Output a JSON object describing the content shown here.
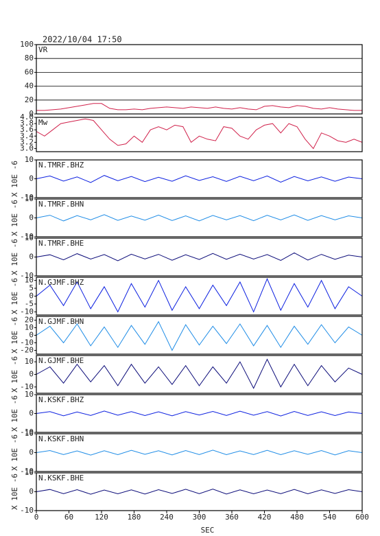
{
  "chart_data": [
    {
      "type": "line",
      "title": "2022/10/04  17:50",
      "label": "VR",
      "color": "#d0204a",
      "grid": true,
      "xlim": [
        0,
        600
      ],
      "ylim": [
        0,
        100
      ],
      "yticks": [
        0,
        20,
        40,
        60,
        80,
        100
      ],
      "x": [
        0,
        15,
        30,
        45,
        60,
        75,
        90,
        105,
        120,
        135,
        150,
        165,
        180,
        195,
        210,
        225,
        240,
        255,
        270,
        285,
        300,
        315,
        330,
        345,
        360,
        375,
        390,
        405,
        420,
        435,
        450,
        465,
        480,
        495,
        510,
        525,
        540,
        555,
        570,
        585,
        600
      ],
      "values": [
        5,
        5,
        6,
        7,
        9,
        11,
        13,
        15,
        15,
        8,
        6,
        6,
        7,
        6,
        8,
        9,
        10,
        9,
        8,
        10,
        9,
        8,
        10,
        8,
        7,
        9,
        7,
        6,
        11,
        12,
        10,
        9,
        12,
        11,
        8,
        7,
        9,
        7,
        6,
        5,
        5
      ]
    },
    {
      "type": "line",
      "label": "Mw",
      "color": "#d0204a",
      "xlim": [
        0,
        600
      ],
      "ylim": [
        2.9,
        4.0
      ],
      "yticks": [
        {
          "value": 3.0,
          "label": "3.0"
        },
        3.2,
        3.4,
        3.6,
        3.8,
        {
          "value": 4.0,
          "label": "4.0"
        }
      ],
      "x": [
        0,
        15,
        30,
        45,
        60,
        75,
        90,
        105,
        120,
        135,
        150,
        165,
        180,
        195,
        210,
        225,
        240,
        255,
        270,
        285,
        300,
        315,
        330,
        345,
        360,
        375,
        390,
        405,
        420,
        435,
        450,
        465,
        480,
        495,
        510,
        525,
        540,
        555,
        570,
        585,
        600
      ],
      "values": [
        3.55,
        3.4,
        3.6,
        3.8,
        3.85,
        3.9,
        3.95,
        3.9,
        3.6,
        3.3,
        3.1,
        3.15,
        3.4,
        3.2,
        3.6,
        3.7,
        3.6,
        3.75,
        3.7,
        3.2,
        3.4,
        3.3,
        3.25,
        3.7,
        3.65,
        3.4,
        3.3,
        3.6,
        3.75,
        3.8,
        3.5,
        3.8,
        3.7,
        3.3,
        3.0,
        3.5,
        3.4,
        3.25,
        3.2,
        3.3,
        3.2
      ]
    },
    {
      "type": "line",
      "label": "N.TMRF.BHZ",
      "ylabel": "X 10E -6",
      "color": "#0a1ee0",
      "xlim": [
        0,
        600
      ],
      "ylim": [
        -10,
        10
      ],
      "yticks": [
        -10,
        0,
        10
      ],
      "x": [
        0,
        25,
        50,
        75,
        100,
        125,
        150,
        175,
        200,
        225,
        250,
        275,
        300,
        325,
        350,
        375,
        400,
        425,
        450,
        475,
        500,
        525,
        550,
        575,
        600
      ],
      "values": [
        0,
        1.5,
        -1.2,
        1,
        -2,
        1.8,
        -1,
        1.2,
        -1.5,
        0.8,
        -1.3,
        1.6,
        -0.9,
        1.1,
        -1.4,
        1.3,
        -1,
        1.5,
        -1.8,
        1.2,
        -1.1,
        1,
        -1.3,
        0.9,
        0
      ]
    },
    {
      "type": "line",
      "label": "N.TMRF.BHN",
      "ylabel": "X 10E -6",
      "color": "#1e8ce6",
      "xlim": [
        0,
        600
      ],
      "ylim": [
        -10,
        10
      ],
      "yticks": [
        -10,
        0,
        10
      ],
      "x": [
        0,
        25,
        50,
        75,
        100,
        125,
        150,
        175,
        200,
        225,
        250,
        275,
        300,
        325,
        350,
        375,
        400,
        425,
        450,
        475,
        500,
        525,
        550,
        575,
        600
      ],
      "values": [
        0,
        1.4,
        -1.6,
        1.2,
        -1,
        1.7,
        -1.3,
        1,
        -1.2,
        1.5,
        -1.4,
        1.1,
        -1.6,
        1.3,
        -1,
        1.2,
        -1.5,
        1.4,
        -1.1,
        1.6,
        -1.3,
        1.2,
        -1,
        1.1,
        0
      ]
    },
    {
      "type": "line",
      "label": "N.TMRF.BHE",
      "ylabel": "X 10E -6",
      "color": "#0a0a78",
      "xlim": [
        0,
        600
      ],
      "ylim": [
        -10,
        10
      ],
      "yticks": [
        -10,
        0,
        10
      ],
      "x": [
        0,
        25,
        50,
        75,
        100,
        125,
        150,
        175,
        200,
        225,
        250,
        275,
        300,
        325,
        350,
        375,
        400,
        425,
        450,
        475,
        500,
        525,
        550,
        575,
        600
      ],
      "values": [
        0,
        1.2,
        -1.5,
        1.8,
        -1.1,
        1.3,
        -2,
        1.5,
        -1,
        1.4,
        -1.7,
        1.2,
        -1.3,
        1.9,
        -1.2,
        1.5,
        -1.1,
        1.3,
        -1.8,
        2.2,
        -1.6,
        1.4,
        -1.2,
        1,
        0
      ]
    },
    {
      "type": "line",
      "label": "N.GJMF.BHZ",
      "ylabel": "X 10E -6",
      "color": "#0a1ee0",
      "xlim": [
        0,
        600
      ],
      "ylim": [
        -12,
        12
      ],
      "yticks": [
        -10,
        -5,
        0,
        5,
        10
      ],
      "x": [
        0,
        25,
        50,
        75,
        100,
        125,
        150,
        175,
        200,
        225,
        250,
        275,
        300,
        325,
        350,
        375,
        400,
        425,
        450,
        475,
        500,
        525,
        550,
        575,
        600
      ],
      "values": [
        0,
        7,
        -6,
        9,
        -8,
        6,
        -10,
        8,
        -7,
        10,
        -9,
        6,
        -8,
        7,
        -6,
        9,
        -10,
        11,
        -9,
        8,
        -7,
        10,
        -8,
        6,
        0
      ]
    },
    {
      "type": "line",
      "label": "N.GJMF.BHN",
      "ylabel": "X 10E -6",
      "color": "#1e8ce6",
      "xlim": [
        0,
        600
      ],
      "ylim": [
        -25,
        25
      ],
      "yticks": [
        -20,
        -10,
        0,
        10,
        20
      ],
      "x": [
        0,
        25,
        50,
        75,
        100,
        125,
        150,
        175,
        200,
        225,
        250,
        275,
        300,
        325,
        350,
        375,
        400,
        425,
        450,
        475,
        500,
        525,
        550,
        575,
        600
      ],
      "values": [
        0,
        12,
        -10,
        15,
        -14,
        11,
        -16,
        13,
        -12,
        18,
        -20,
        14,
        -13,
        12,
        -11,
        15,
        -14,
        13,
        -16,
        12,
        -12,
        14,
        -10,
        11,
        0
      ]
    },
    {
      "type": "line",
      "label": "N.GJMF.BHE",
      "ylabel": "X 10E -6",
      "color": "#0a0a78",
      "xlim": [
        0,
        600
      ],
      "ylim": [
        -15,
        15
      ],
      "yticks": [
        -10,
        0,
        10
      ],
      "x": [
        0,
        25,
        50,
        75,
        100,
        125,
        150,
        175,
        200,
        225,
        250,
        275,
        300,
        325,
        350,
        375,
        400,
        425,
        450,
        475,
        500,
        525,
        550,
        575,
        600
      ],
      "values": [
        0,
        6,
        -7,
        8,
        -6,
        7,
        -9,
        8,
        -7,
        6,
        -8,
        7,
        -9,
        6,
        -7,
        10,
        -11,
        12,
        -10,
        8,
        -9,
        7,
        -6,
        5,
        0
      ]
    },
    {
      "type": "line",
      "label": "N.KSKF.BHZ",
      "ylabel": "X 10E -6",
      "color": "#0a1ee0",
      "xlim": [
        0,
        600
      ],
      "ylim": [
        -10,
        10
      ],
      "yticks": [
        -10,
        0,
        10
      ],
      "x": [
        0,
        25,
        50,
        75,
        100,
        125,
        150,
        175,
        200,
        225,
        250,
        275,
        300,
        325,
        350,
        375,
        400,
        425,
        450,
        475,
        500,
        525,
        550,
        575,
        600
      ],
      "values": [
        0,
        1,
        -1.2,
        0.8,
        -1,
        1.3,
        -0.9,
        1,
        -1.1,
        0.9,
        -1.2,
        1,
        -0.8,
        1.1,
        -1,
        1.2,
        -0.9,
        1,
        -1.3,
        1.1,
        -1,
        0.9,
        -1.1,
        0.8,
        0
      ]
    },
    {
      "type": "line",
      "label": "N.KSKF.BHN",
      "ylabel": "X 10E -6",
      "color": "#1e8ce6",
      "xlim": [
        0,
        600
      ],
      "ylim": [
        -10,
        10
      ],
      "yticks": [
        -10,
        0,
        10
      ],
      "x": [
        0,
        25,
        50,
        75,
        100,
        125,
        150,
        175,
        200,
        225,
        250,
        275,
        300,
        325,
        350,
        375,
        400,
        425,
        450,
        475,
        500,
        525,
        550,
        575,
        600
      ],
      "values": [
        0,
        1.1,
        -1,
        0.9,
        -1.3,
        1,
        -1.1,
        1.2,
        -0.9,
        1,
        -1.2,
        1.1,
        -1,
        1.3,
        -1.1,
        0.9,
        -1,
        1.2,
        -1.1,
        1,
        -0.9,
        1.1,
        -1.2,
        1,
        0
      ]
    },
    {
      "type": "line",
      "label": "N.KSKF.BHE",
      "ylabel": "X 10E -6",
      "xlabel": "SEC",
      "color": "#0a0a78",
      "xlim": [
        0,
        600
      ],
      "ylim": [
        -10,
        10
      ],
      "yticks": [
        -10,
        0,
        10
      ],
      "xticks": [
        0,
        60,
        120,
        180,
        240,
        300,
        360,
        420,
        480,
        540,
        600
      ],
      "x": [
        0,
        25,
        50,
        75,
        100,
        125,
        150,
        175,
        200,
        225,
        250,
        275,
        300,
        325,
        350,
        375,
        400,
        425,
        450,
        475,
        500,
        525,
        550,
        575,
        600
      ],
      "values": [
        0,
        1.2,
        -1,
        1.1,
        -1.3,
        0.9,
        -1.1,
        1,
        -1.2,
        1.1,
        -0.9,
        1.3,
        -1,
        1.4,
        -1.2,
        1,
        -1.1,
        0.9,
        -1,
        1.2,
        -1.1,
        1,
        -0.9,
        1.1,
        0
      ]
    }
  ]
}
